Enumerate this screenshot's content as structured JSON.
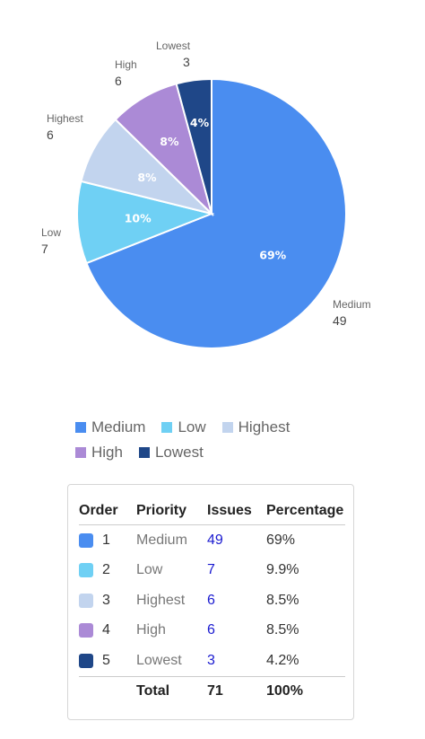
{
  "chart_data": {
    "type": "pie",
    "slices": [
      {
        "label": "Medium",
        "value": 49,
        "percent_label": "69%",
        "color": "#4a8df0"
      },
      {
        "label": "Low",
        "value": 7,
        "percent_label": "10%",
        "color": "#6fd0f4"
      },
      {
        "label": "Highest",
        "value": 6,
        "percent_label": "8%",
        "color": "#c2d4ee"
      },
      {
        "label": "High",
        "value": 6,
        "percent_label": "8%",
        "color": "#ab8ad6"
      },
      {
        "label": "Lowest",
        "value": 3,
        "percent_label": "4%",
        "color": "#1f4788"
      }
    ],
    "legend_placement": "bottom"
  },
  "legend": [
    {
      "label": "Medium",
      "color": "#4a8df0"
    },
    {
      "label": "Low",
      "color": "#6fd0f4"
    },
    {
      "label": "Highest",
      "color": "#c2d4ee"
    },
    {
      "label": "High",
      "color": "#ab8ad6"
    },
    {
      "label": "Lowest",
      "color": "#1f4788"
    }
  ],
  "table": {
    "headers": {
      "order": "Order",
      "priority": "Priority",
      "issues": "Issues",
      "percentage": "Percentage"
    },
    "rows": [
      {
        "order": "1",
        "priority": "Medium",
        "issues": "49",
        "percentage": "69%",
        "color": "#4a8df0"
      },
      {
        "order": "2",
        "priority": "Low",
        "issues": "7",
        "percentage": "9.9%",
        "color": "#6fd0f4"
      },
      {
        "order": "3",
        "priority": "Highest",
        "issues": "6",
        "percentage": "8.5%",
        "color": "#c2d4ee"
      },
      {
        "order": "4",
        "priority": "High",
        "issues": "6",
        "percentage": "8.5%",
        "color": "#ab8ad6"
      },
      {
        "order": "5",
        "priority": "Lowest",
        "issues": "3",
        "percentage": "4.2%",
        "color": "#1f4788"
      }
    ],
    "total": {
      "label": "Total",
      "issues": "71",
      "percentage": "100%"
    }
  }
}
